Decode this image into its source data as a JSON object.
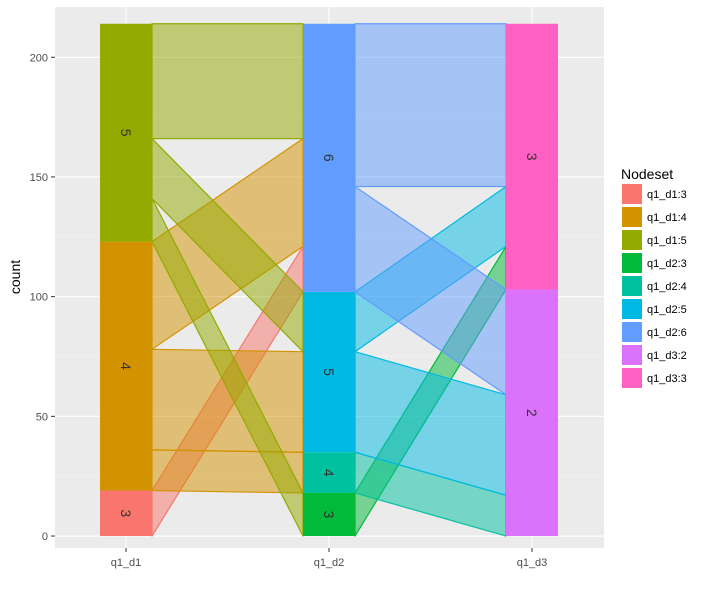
{
  "chart_data": {
    "type": "alluvial",
    "ylabel": "count",
    "xlabel": "",
    "ylim": [
      -5,
      221
    ],
    "y_ticks": [
      0,
      50,
      100,
      150,
      200
    ],
    "axes": [
      "q1_d1",
      "q1_d2",
      "q1_d3"
    ],
    "grid": true,
    "legend": {
      "title": "Nodeset",
      "position": "right",
      "entries": [
        {
          "label": "q1_d1:3",
          "color": "#F8766D"
        },
        {
          "label": "q1_d1:4",
          "color": "#D39200"
        },
        {
          "label": "q1_d1:5",
          "color": "#93AA00"
        },
        {
          "label": "q1_d2:3",
          "color": "#00BA38"
        },
        {
          "label": "q1_d2:4",
          "color": "#00C19F"
        },
        {
          "label": "q1_d2:5",
          "color": "#00B9E3"
        },
        {
          "label": "q1_d2:6",
          "color": "#619CFF"
        },
        {
          "label": "q1_d3:2",
          "color": "#DB72FB"
        },
        {
          "label": "q1_d3:3",
          "color": "#FF61C3"
        }
      ]
    },
    "strata": [
      {
        "axis": 0,
        "label": "3",
        "key": "q1_d1:3",
        "bottom": 0,
        "top": 19
      },
      {
        "axis": 0,
        "label": "4",
        "key": "q1_d1:4",
        "bottom": 19,
        "top": 123
      },
      {
        "axis": 0,
        "label": "5",
        "key": "q1_d1:5",
        "bottom": 123,
        "top": 214
      },
      {
        "axis": 1,
        "label": "3",
        "key": "q1_d2:3",
        "bottom": 0,
        "top": 18
      },
      {
        "axis": 1,
        "label": "4",
        "key": "q1_d2:4",
        "bottom": 18,
        "top": 35
      },
      {
        "axis": 1,
        "label": "5",
        "key": "q1_d2:5",
        "bottom": 35,
        "top": 102
      },
      {
        "axis": 1,
        "label": "6",
        "key": "q1_d2:6",
        "bottom": 102,
        "top": 214
      },
      {
        "axis": 2,
        "label": "2",
        "key": "q1_d3:2",
        "bottom": 0,
        "top": 103
      },
      {
        "axis": 2,
        "label": "3",
        "key": "q1_d3:3",
        "bottom": 103,
        "top": 214
      }
    ],
    "flows": [
      {
        "from_axis": 0,
        "key": "q1_d1:3",
        "y0": [
          0,
          19
        ],
        "y1": [
          102,
          121
        ]
      },
      {
        "from_axis": 0,
        "key": "q1_d1:4",
        "y0": [
          19,
          36
        ],
        "y1": [
          18,
          35
        ]
      },
      {
        "from_axis": 0,
        "key": "q1_d1:4",
        "y0": [
          36,
          78
        ],
        "y1": [
          35,
          77
        ]
      },
      {
        "from_axis": 0,
        "key": "q1_d1:4",
        "y0": [
          78,
          123
        ],
        "y1": [
          121,
          166
        ]
      },
      {
        "from_axis": 0,
        "key": "q1_d1:5",
        "y0": [
          123,
          141
        ],
        "y1": [
          0,
          18
        ]
      },
      {
        "from_axis": 0,
        "key": "q1_d1:5",
        "y0": [
          141,
          166
        ],
        "y1": [
          77,
          102
        ]
      },
      {
        "from_axis": 0,
        "key": "q1_d1:5",
        "y0": [
          166,
          214
        ],
        "y1": [
          166,
          214
        ]
      },
      {
        "from_axis": 1,
        "key": "q1_d2:3",
        "y0": [
          0,
          18
        ],
        "y1": [
          103,
          121
        ]
      },
      {
        "from_axis": 1,
        "key": "q1_d2:4",
        "y0": [
          18,
          35
        ],
        "y1": [
          0,
          17
        ]
      },
      {
        "from_axis": 1,
        "key": "q1_d2:5",
        "y0": [
          35,
          77
        ],
        "y1": [
          17,
          59
        ]
      },
      {
        "from_axis": 1,
        "key": "q1_d2:5",
        "y0": [
          77,
          102
        ],
        "y1": [
          121,
          146
        ]
      },
      {
        "from_axis": 1,
        "key": "q1_d2:6",
        "y0": [
          102,
          146
        ],
        "y1": [
          59,
          103
        ]
      },
      {
        "from_axis": 1,
        "key": "q1_d2:6",
        "y0": [
          146,
          214
        ],
        "y1": [
          146,
          214
        ]
      }
    ]
  }
}
